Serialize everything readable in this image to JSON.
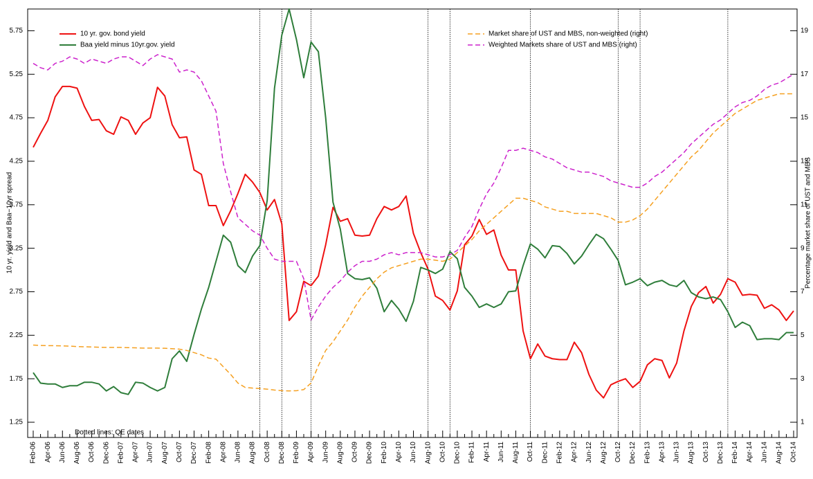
{
  "chart_data": {
    "type": "line",
    "categories": [
      "Feb-06",
      null,
      "Apr-06",
      null,
      "Jun-06",
      null,
      "Aug-06",
      null,
      "Oct-06",
      null,
      "Dec-06",
      null,
      "Feb-07",
      null,
      "Apr-07",
      null,
      "Jun-07",
      null,
      "Aug-07",
      null,
      "Oct-07",
      null,
      "Dec-07",
      null,
      "Feb-08",
      null,
      "Apr-08",
      null,
      "Jun-08",
      null,
      "Aug-08",
      null,
      "Oct-08",
      null,
      "Dec-08",
      null,
      "Feb-09",
      null,
      "Apr-09",
      null,
      "Jun-09",
      null,
      "Aug-09",
      null,
      "Oct-09",
      null,
      "Dec-09",
      null,
      "Feb-10",
      null,
      "Apr-10",
      null,
      "Jun-10",
      null,
      "Aug-10",
      null,
      "Oct-10",
      null,
      "Dec-10",
      null,
      "Feb-11",
      null,
      "Apr-11",
      null,
      "Jun-11",
      null,
      "Aug-11",
      null,
      "Oct-11",
      null,
      "Dec-11",
      null,
      "Feb-12",
      null,
      "Apr-12",
      null,
      "Jun-12",
      null,
      "Aug-12",
      null,
      "Oct-12",
      null,
      "Dec-12",
      null,
      "Feb-13",
      null,
      "Apr-13",
      null,
      "Jun-13",
      null,
      "Aug-13",
      null,
      "Oct-13",
      null,
      "Dec-13",
      null,
      "Feb-14",
      null,
      "Apr-14",
      null,
      "Jun-14",
      null,
      "Aug-14",
      null,
      "Oct-14"
    ],
    "y_label": "10 yr. yield and Baa−10yr spread",
    "y2_label": "Percentage market share of UST and MBS",
    "ylim": [
      1.075,
      6.0
    ],
    "yticks": [
      1.25,
      1.75,
      2.25,
      2.75,
      3.25,
      3.75,
      4.25,
      4.75,
      5.25,
      5.75
    ],
    "y2lim": [
      0.3,
      20
    ],
    "y2ticks": [
      1,
      3,
      5,
      7,
      9,
      11,
      13,
      15,
      17,
      19
    ],
    "annotation": "Dotted lines: QE dates",
    "qe_lines": [
      31,
      34,
      38,
      54,
      57,
      68,
      80,
      83,
      95
    ],
    "series": [
      {
        "name": "10 yr. gov. bond yield",
        "color": "#ee1111",
        "dashed": false,
        "legend_loc": "upper left",
        "values": [
          4.41,
          4.57,
          4.72,
          4.99,
          5.11,
          5.11,
          5.09,
          4.88,
          4.72,
          4.73,
          4.6,
          4.56,
          4.76,
          4.72,
          4.56,
          4.69,
          4.75,
          5.1,
          5.0,
          4.67,
          4.52,
          4.53,
          4.15,
          4.1,
          3.74,
          3.74,
          3.51,
          3.68,
          3.88,
          4.1,
          4.01,
          3.89,
          3.69,
          3.81,
          3.53,
          2.42,
          2.52,
          2.87,
          2.82,
          2.93,
          3.29,
          3.72,
          3.56,
          3.59,
          3.4,
          3.39,
          3.4,
          3.59,
          3.73,
          3.69,
          3.73,
          3.85,
          3.42,
          3.2,
          3.01,
          2.7,
          2.65,
          2.54,
          2.76,
          3.29,
          3.39,
          3.58,
          3.41,
          3.46,
          3.17,
          3.0,
          3.0,
          2.3,
          1.98,
          2.15,
          2.01,
          1.98,
          1.97,
          1.97,
          2.17,
          2.05,
          1.8,
          1.62,
          1.53,
          1.68,
          1.72,
          1.75,
          1.65,
          1.72,
          1.91,
          1.98,
          1.96,
          1.76,
          1.93,
          2.3,
          2.58,
          2.74,
          2.81,
          2.62,
          2.72,
          2.9,
          2.86,
          2.71,
          2.72,
          2.71,
          2.56,
          2.6,
          2.54,
          2.42,
          2.53
        ]
      },
      {
        "name": "Baa yield minus 10yr.gov. yield",
        "color": "#2e7d3a",
        "dashed": false,
        "legend_loc": "upper left",
        "values": [
          1.82,
          1.7,
          1.69,
          1.69,
          1.65,
          1.67,
          1.67,
          1.71,
          1.71,
          1.69,
          1.61,
          1.66,
          1.59,
          1.57,
          1.71,
          1.7,
          1.65,
          1.61,
          1.65,
          1.98,
          2.07,
          1.95,
          2.26,
          2.55,
          2.8,
          3.1,
          3.4,
          3.32,
          3.05,
          2.97,
          3.16,
          3.28,
          3.8,
          5.09,
          5.7,
          6.0,
          5.65,
          5.21,
          5.62,
          5.51,
          4.75,
          3.78,
          3.47,
          2.96,
          2.9,
          2.89,
          2.91,
          2.79,
          2.52,
          2.65,
          2.55,
          2.41,
          2.64,
          3.03,
          3.0,
          2.96,
          3.01,
          3.21,
          3.13,
          2.8,
          2.7,
          2.57,
          2.61,
          2.57,
          2.61,
          2.75,
          2.76,
          3.05,
          3.3,
          3.24,
          3.14,
          3.28,
          3.27,
          3.19,
          3.07,
          3.16,
          3.29,
          3.41,
          3.36,
          3.24,
          3.11,
          2.83,
          2.86,
          2.9,
          2.82,
          2.86,
          2.88,
          2.83,
          2.81,
          2.88,
          2.74,
          2.69,
          2.67,
          2.69,
          2.66,
          2.52,
          2.34,
          2.4,
          2.36,
          2.2,
          2.21,
          2.21,
          2.2,
          2.28,
          2.28
        ]
      },
      {
        "name": "Market share of UST and MBS, non-weighted (right)",
        "color": "#f5a020",
        "dashed": true,
        "axis": "y2",
        "legend_loc": "upper right",
        "values": [
          4.55,
          4.53,
          4.52,
          4.52,
          4.51,
          4.5,
          4.48,
          4.47,
          4.46,
          4.45,
          4.44,
          4.44,
          4.44,
          4.43,
          4.42,
          4.41,
          4.41,
          4.41,
          4.4,
          4.38,
          4.36,
          4.3,
          4.2,
          4.1,
          3.95,
          3.9,
          3.55,
          3.2,
          2.8,
          2.6,
          2.57,
          2.55,
          2.52,
          2.48,
          2.45,
          2.44,
          2.45,
          2.5,
          2.8,
          3.6,
          4.3,
          4.7,
          5.2,
          5.7,
          6.3,
          6.8,
          7.2,
          7.6,
          7.9,
          8.1,
          8.2,
          8.3,
          8.4,
          8.5,
          8.5,
          8.45,
          8.4,
          8.5,
          8.8,
          9.1,
          9.4,
          9.8,
          10.1,
          10.4,
          10.7,
          11.0,
          11.3,
          11.3,
          11.2,
          11.1,
          10.9,
          10.8,
          10.7,
          10.7,
          10.6,
          10.6,
          10.6,
          10.6,
          10.5,
          10.4,
          10.2,
          10.2,
          10.3,
          10.5,
          10.8,
          11.2,
          11.6,
          12.0,
          12.4,
          12.8,
          13.2,
          13.5,
          13.9,
          14.3,
          14.6,
          14.9,
          15.2,
          15.4,
          15.6,
          15.8,
          15.9,
          16.0,
          16.1,
          16.1,
          16.1
        ]
      },
      {
        "name": "Weighted Markets share of UST and MBS (right)",
        "color": "#cc22cc",
        "dashed": true,
        "axis": "y2",
        "legend_loc": "upper right",
        "values": [
          17.5,
          17.3,
          17.2,
          17.5,
          17.6,
          17.8,
          17.7,
          17.5,
          17.7,
          17.6,
          17.5,
          17.7,
          17.8,
          17.8,
          17.6,
          17.4,
          17.7,
          17.9,
          17.8,
          17.7,
          17.1,
          17.2,
          17.1,
          16.7,
          16.0,
          15.3,
          12.9,
          11.6,
          10.4,
          10.1,
          9.8,
          9.6,
          9.0,
          8.5,
          8.4,
          8.4,
          8.4,
          7.6,
          5.7,
          6.3,
          6.8,
          7.2,
          7.5,
          7.9,
          8.2,
          8.4,
          8.4,
          8.5,
          8.7,
          8.8,
          8.7,
          8.8,
          8.8,
          8.8,
          8.7,
          8.6,
          8.6,
          8.7,
          8.9,
          9.5,
          10.0,
          10.8,
          11.5,
          12.0,
          12.7,
          13.5,
          13.5,
          13.6,
          13.5,
          13.4,
          13.2,
          13.1,
          12.9,
          12.7,
          12.6,
          12.5,
          12.5,
          12.4,
          12.3,
          12.1,
          12.0,
          11.9,
          11.8,
          11.8,
          12.0,
          12.3,
          12.5,
          12.8,
          13.1,
          13.4,
          13.8,
          14.1,
          14.4,
          14.7,
          14.9,
          15.2,
          15.5,
          15.7,
          15.8,
          16.0,
          16.3,
          16.5,
          16.6,
          16.8,
          17.0
        ]
      }
    ]
  }
}
